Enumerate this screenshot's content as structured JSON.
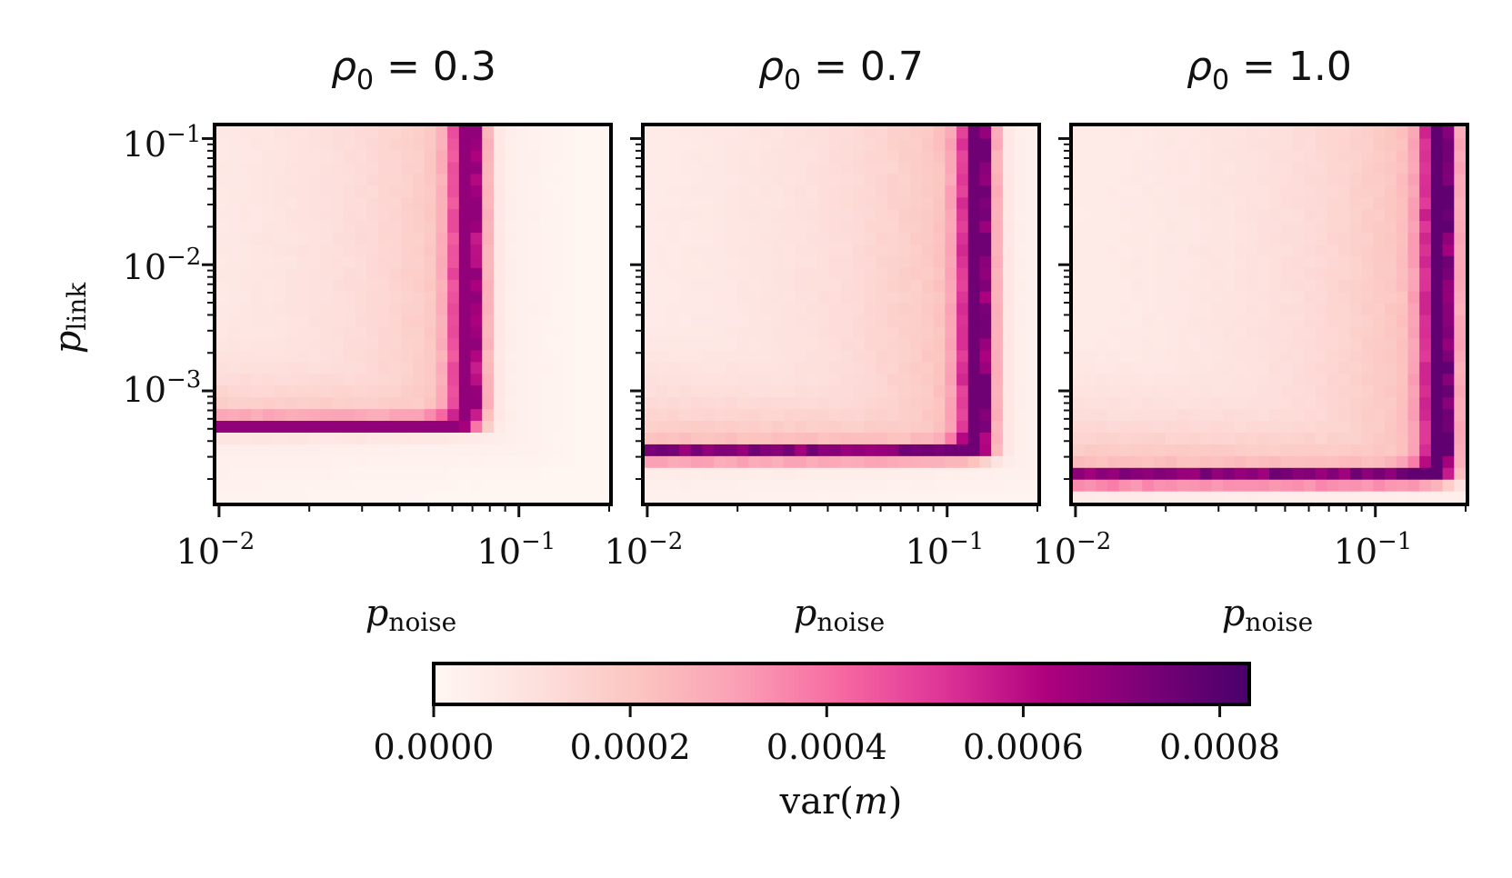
{
  "chart_data": {
    "type": "heatmap",
    "colormap": "RdPu",
    "colorbar": {
      "label_prefix": "var(",
      "label_var": "m",
      "label_suffix": ")",
      "range": [
        0,
        0.00083
      ],
      "ticks": [
        {
          "value": 0.0,
          "label": "0.0000"
        },
        {
          "value": 0.0002,
          "label": "0.0002"
        },
        {
          "value": 0.0004,
          "label": "0.0004"
        },
        {
          "value": 0.0006,
          "label": "0.0006"
        },
        {
          "value": 0.0008,
          "label": "0.0008"
        }
      ]
    },
    "xlabel": {
      "var": "p",
      "sub": "noise"
    },
    "ylabel": {
      "var": "p",
      "sub": "link"
    },
    "x_scale": "log",
    "y_scale": "log",
    "xlim": [
      0.0098,
      0.2
    ],
    "ylim": [
      0.00013,
      0.125
    ],
    "x_major_ticks": [
      {
        "value": 0.01,
        "base": "10",
        "exp": "−2"
      },
      {
        "value": 0.1,
        "base": "10",
        "exp": "−1"
      }
    ],
    "y_major_ticks": [
      {
        "value": 0.1,
        "base": "10",
        "exp": "−1"
      },
      {
        "value": 0.01,
        "base": "10",
        "exp": "−2"
      },
      {
        "value": 0.001,
        "base": "10",
        "exp": "−3"
      }
    ],
    "grid": {
      "nx": 34,
      "ny": 32
    },
    "panels": [
      {
        "title_var": "ρ",
        "title_sub": "0",
        "title_eq": " = 0.3",
        "rho0": 0.3,
        "critical_noise": 0.07,
        "critical_link": 0.00052,
        "peak_var": 0.00068
      },
      {
        "title_var": "ρ",
        "title_sub": "0",
        "title_eq": " = 0.7",
        "rho0": 0.7,
        "critical_noise": 0.13,
        "critical_link": 0.00031,
        "peak_var": 0.00075
      },
      {
        "title_var": "ρ",
        "title_sub": "0",
        "title_eq": " = 1.0",
        "rho0": 1.0,
        "critical_noise": 0.17,
        "critical_link": 0.0002,
        "peak_var": 0.00078
      }
    ]
  }
}
